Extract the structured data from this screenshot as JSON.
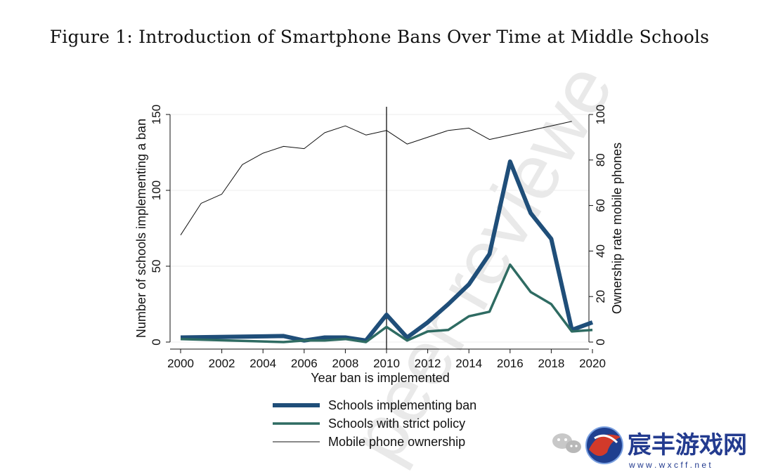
{
  "figure": {
    "caption": "Figure 1: Introduction of Smartphone Bans Over Time at Middle Schools"
  },
  "chart_data": {
    "type": "line",
    "x": [
      2000,
      2001,
      2002,
      2003,
      2004,
      2005,
      2006,
      2007,
      2008,
      2009,
      2010,
      2011,
      2012,
      2013,
      2014,
      2015,
      2016,
      2017,
      2018,
      2019,
      2020
    ],
    "xlabel": "Year ban is implemented",
    "xlim": [
      2000,
      2020
    ],
    "xticks": [
      2000,
      2002,
      2004,
      2006,
      2008,
      2010,
      2012,
      2014,
      2016,
      2018,
      2020
    ],
    "ylabel_left": "Number of schools implementing a ban",
    "ylim_left": [
      0,
      150
    ],
    "yticks_left": [
      0,
      50,
      100,
      150
    ],
    "ylabel_right": "Ownership rate mobile phones",
    "ylim_right": [
      0,
      100
    ],
    "yticks_right": [
      0,
      20,
      40,
      60,
      80,
      100
    ],
    "grid": true,
    "vline_x": 2010,
    "legend_position": "bottom",
    "series": [
      {
        "name": "Schools implementing ban",
        "axis": "left",
        "color": "#1f4e79",
        "style": "thick",
        "points": [
          [
            2000,
            3
          ],
          [
            2005,
            4
          ],
          [
            2006,
            1
          ],
          [
            2007,
            3
          ],
          [
            2008,
            3
          ],
          [
            2009,
            1
          ],
          [
            2010,
            18
          ],
          [
            2011,
            3
          ],
          [
            2012,
            13
          ],
          [
            2013,
            25
          ],
          [
            2014,
            38
          ],
          [
            2015,
            58
          ],
          [
            2016,
            119
          ],
          [
            2017,
            85
          ],
          [
            2018,
            68
          ],
          [
            2019,
            8
          ],
          [
            2020,
            13
          ]
        ]
      },
      {
        "name": "Schools with strict policy",
        "axis": "left",
        "color": "#2e6b62",
        "style": "medium",
        "points": [
          [
            2000,
            2
          ],
          [
            2005,
            0
          ],
          [
            2006,
            1
          ],
          [
            2007,
            1
          ],
          [
            2008,
            2
          ],
          [
            2009,
            0
          ],
          [
            2010,
            10
          ],
          [
            2011,
            1
          ],
          [
            2012,
            7
          ],
          [
            2013,
            8
          ],
          [
            2014,
            17
          ],
          [
            2015,
            20
          ],
          [
            2016,
            51
          ],
          [
            2017,
            33
          ],
          [
            2018,
            25
          ],
          [
            2019,
            7
          ],
          [
            2020,
            8
          ]
        ]
      },
      {
        "name": "Mobile phone ownership",
        "axis": "right",
        "color": "#111111",
        "style": "thin",
        "points": [
          [
            2000,
            47
          ],
          [
            2001,
            61
          ],
          [
            2002,
            65
          ],
          [
            2003,
            78
          ],
          [
            2004,
            83
          ],
          [
            2005,
            86
          ],
          [
            2006,
            85
          ],
          [
            2007,
            92
          ],
          [
            2008,
            95
          ],
          [
            2009,
            91
          ],
          [
            2010,
            93
          ],
          [
            2011,
            87
          ],
          [
            2012,
            90
          ],
          [
            2013,
            93
          ],
          [
            2014,
            94
          ],
          [
            2015,
            89
          ],
          [
            2016,
            91
          ],
          [
            2017,
            93
          ],
          [
            2018,
            95
          ],
          [
            2019,
            97
          ]
        ]
      }
    ]
  },
  "watermark": {
    "diagonal_text": "peer reviewe",
    "site_name": "宸丰游戏网",
    "site_url": "w w w . w x c f f . n e t",
    "chat_icon": "wechat-icon",
    "logo_icon": "dragon-logo-icon"
  }
}
